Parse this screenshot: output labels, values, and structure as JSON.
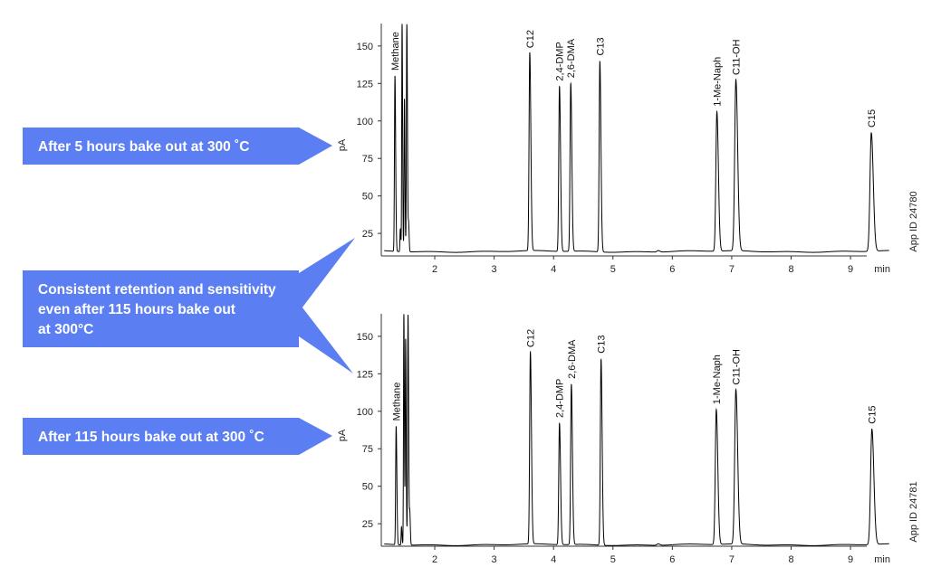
{
  "callouts": {
    "top": "After 5 hours bake out at 300 ˚C",
    "middle": [
      "Consistent retention and sensitivity",
      "even after 115 hours bake out",
      "at 300°C"
    ],
    "bottom": "After 115 hours bake out at 300 ˚C"
  },
  "colors": {
    "callout": "#5b7ff2",
    "trace": "#000000"
  },
  "chart_data": [
    {
      "type": "line",
      "ylabel": "pA",
      "xunit": "min",
      "xticks": [
        2,
        3,
        4,
        5,
        6,
        7,
        8,
        9
      ],
      "yticks": [
        25,
        50,
        75,
        100,
        125,
        150
      ],
      "xlim": [
        1.1,
        9.7
      ],
      "ylim": [
        10,
        165
      ],
      "baseline": 13,
      "app_id": "App ID 24780",
      "peaks": [
        {
          "label": "Methane",
          "rt": 1.33,
          "height": 130,
          "width": 0.008
        },
        {
          "label": "",
          "rt": 1.42,
          "height": 28,
          "width": 0.006
        },
        {
          "label": "",
          "rt": 1.45,
          "height": 165,
          "width": 0.006
        },
        {
          "label": "",
          "rt": 1.49,
          "height": 115,
          "width": 0.006
        },
        {
          "label": "",
          "rt": 1.53,
          "height": 165,
          "width": 0.007
        },
        {
          "label": "",
          "rt": 1.56,
          "height": 31,
          "width": 0.006
        },
        {
          "label": "C12",
          "rt": 3.6,
          "height": 145,
          "width": 0.012
        },
        {
          "label": "2,4-DMP",
          "rt": 4.1,
          "height": 123,
          "width": 0.012
        },
        {
          "label": "2,6-DMA",
          "rt": 4.29,
          "height": 125,
          "width": 0.012
        },
        {
          "label": "C13",
          "rt": 4.78,
          "height": 140,
          "width": 0.012
        },
        {
          "label": "",
          "rt": 5.76,
          "height": 14,
          "width": 0.02
        },
        {
          "label": "1-Me-Naph",
          "rt": 6.75,
          "height": 106,
          "width": 0.017
        },
        {
          "label": "C11-OH",
          "rt": 7.07,
          "height": 127,
          "width": 0.02
        },
        {
          "label": "C15",
          "rt": 9.35,
          "height": 92,
          "width": 0.022
        }
      ]
    },
    {
      "type": "line",
      "ylabel": "pA",
      "xunit": "min",
      "xticks": [
        2,
        3,
        4,
        5,
        6,
        7,
        8,
        9
      ],
      "yticks": [
        25,
        50,
        75,
        100,
        125,
        150
      ],
      "xlim": [
        1.1,
        9.7
      ],
      "ylim": [
        10,
        165
      ],
      "baseline": 11,
      "app_id": "App ID 24781",
      "peaks": [
        {
          "label": "Methane",
          "rt": 1.35,
          "height": 90,
          "width": 0.008
        },
        {
          "label": "",
          "rt": 1.44,
          "height": 23,
          "width": 0.006
        },
        {
          "label": "",
          "rt": 1.48,
          "height": 165,
          "width": 0.006
        },
        {
          "label": "",
          "rt": 1.51,
          "height": 148,
          "width": 0.006
        },
        {
          "label": "",
          "rt": 1.55,
          "height": 165,
          "width": 0.007
        },
        {
          "label": "",
          "rt": 1.58,
          "height": 32,
          "width": 0.006
        },
        {
          "label": "C12",
          "rt": 3.61,
          "height": 139,
          "width": 0.012
        },
        {
          "label": "2,4-DMP",
          "rt": 4.1,
          "height": 92,
          "width": 0.012
        },
        {
          "label": "2,6-DMA",
          "rt": 4.3,
          "height": 118,
          "width": 0.012
        },
        {
          "label": "C13",
          "rt": 4.8,
          "height": 135,
          "width": 0.012
        },
        {
          "label": "",
          "rt": 5.76,
          "height": 12,
          "width": 0.02
        },
        {
          "label": "1-Me-Naph",
          "rt": 6.74,
          "height": 101,
          "width": 0.017
        },
        {
          "label": "C11-OH",
          "rt": 7.07,
          "height": 114,
          "width": 0.02
        },
        {
          "label": "C15",
          "rt": 9.36,
          "height": 88,
          "width": 0.022
        }
      ]
    }
  ]
}
